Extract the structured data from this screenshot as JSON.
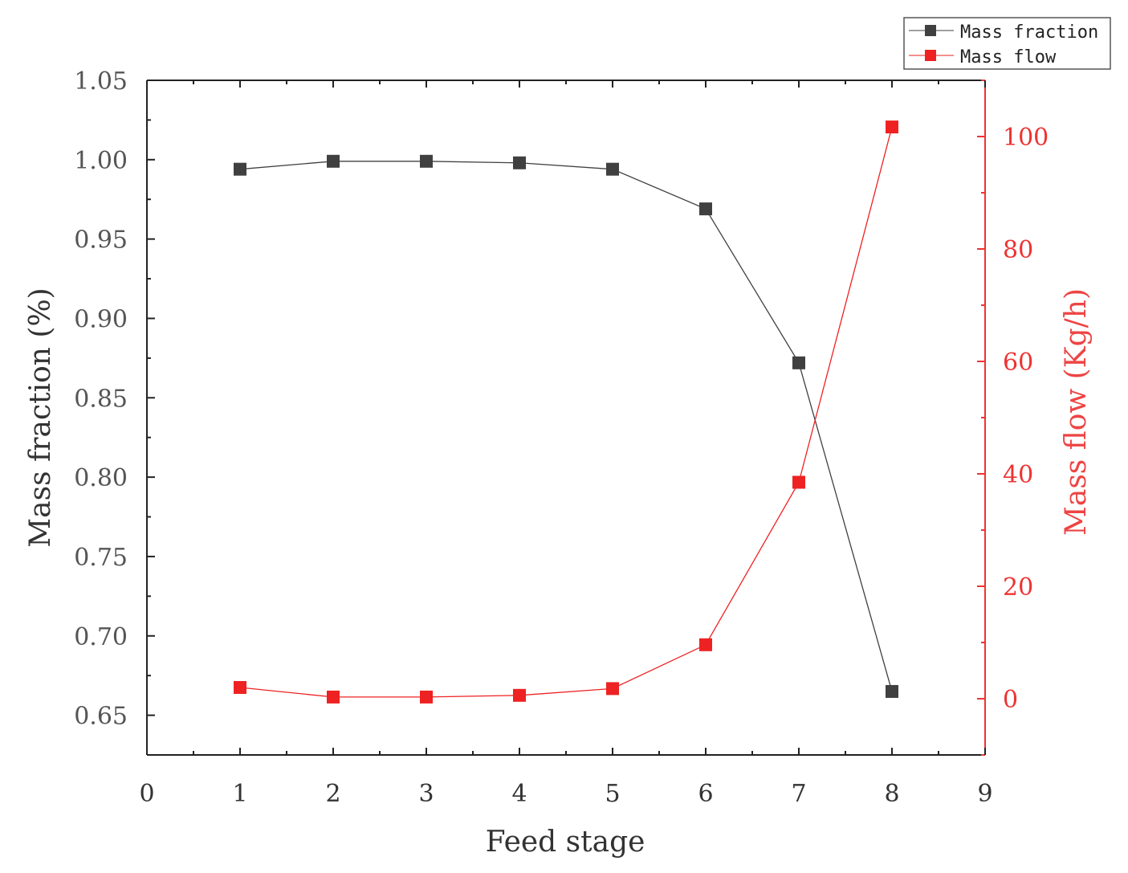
{
  "chart_data": {
    "type": "line",
    "x": [
      1,
      2,
      3,
      4,
      5,
      6,
      7,
      8
    ],
    "xlabel": "Feed stage",
    "xlim": [
      0,
      9
    ],
    "xticks": [
      "0",
      "1",
      "2",
      "3",
      "4",
      "5",
      "6",
      "7",
      "8",
      "9"
    ],
    "y_left": {
      "label": "Mass fraction (%)",
      "lim": [
        0.625,
        1.05
      ],
      "ticks": [
        "0.65",
        "0.70",
        "0.75",
        "0.80",
        "0.85",
        "0.90",
        "0.95",
        "1.00",
        "1.05"
      ],
      "color": "#555555"
    },
    "y_right": {
      "label": "Mass flow (Kg/h)",
      "lim": [
        -10,
        110
      ],
      "ticks": [
        "0",
        "20",
        "40",
        "60",
        "80",
        "100"
      ],
      "color": "#ee3333"
    },
    "series": [
      {
        "name": "Mass fraction",
        "axis": "left",
        "color": "#404040",
        "values": [
          0.994,
          0.999,
          0.999,
          0.998,
          0.994,
          0.969,
          0.872,
          0.665
        ]
      },
      {
        "name": "Mass flow",
        "axis": "right",
        "color": "#ee2222",
        "values": [
          2.0,
          0.3,
          0.3,
          0.6,
          1.8,
          9.6,
          38.5,
          101.7
        ]
      }
    ],
    "legend_position": "top-right",
    "grid": false
  }
}
